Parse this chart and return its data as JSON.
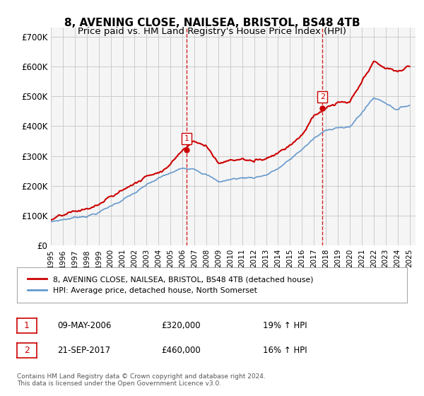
{
  "title": "8, AVENING CLOSE, NAILSEA, BRISTOL, BS48 4TB",
  "subtitle": "Price paid vs. HM Land Registry's House Price Index (HPI)",
  "title_fontsize": 11,
  "subtitle_fontsize": 9.5,
  "ylabel_ticks": [
    "£0",
    "£100K",
    "£200K",
    "£300K",
    "£400K",
    "£500K",
    "£600K",
    "£700K"
  ],
  "ytick_vals": [
    0,
    100000,
    200000,
    300000,
    400000,
    500000,
    600000,
    700000
  ],
  "ylim": [
    0,
    730000
  ],
  "xlim_start": 1995.0,
  "xlim_end": 2025.5,
  "sale1_x": 2006.36,
  "sale1_y": 320000,
  "sale1_label": "1",
  "sale2_x": 2017.72,
  "sale2_y": 460000,
  "sale2_label": "2",
  "legend_line1": "8, AVENING CLOSE, NAILSEA, BRISTOL, BS48 4TB (detached house)",
  "legend_line2": "HPI: Average price, detached house, North Somerset",
  "table_row1": [
    "1",
    "09-MAY-2006",
    "£320,000",
    "19% ↑ HPI"
  ],
  "table_row2": [
    "2",
    "21-SEP-2017",
    "£460,000",
    "16% ↑ HPI"
  ],
  "footer": "Contains HM Land Registry data © Crown copyright and database right 2024.\nThis data is licensed under the Open Government Licence v3.0.",
  "hpi_color": "#6699cc",
  "price_color": "#cc0000",
  "vline_color": "#cc0000",
  "grid_color": "#cccccc",
  "bg_color": "#ffffff",
  "plot_bg": "#f5f5f5",
  "xtick_years": [
    1995,
    1996,
    1997,
    1998,
    1999,
    2000,
    2001,
    2002,
    2003,
    2004,
    2005,
    2006,
    2007,
    2008,
    2009,
    2010,
    2011,
    2012,
    2013,
    2014,
    2015,
    2016,
    2017,
    2018,
    2019,
    2020,
    2021,
    2022,
    2023,
    2024,
    2025
  ],
  "hpi_years": [
    1995,
    1996,
    1997,
    1998,
    1999,
    2000,
    2001,
    2002,
    2003,
    2004,
    2005,
    2006,
    2007,
    2008,
    2009,
    2010,
    2011,
    2012,
    2013,
    2014,
    2015,
    2016,
    2017,
    2018,
    2019,
    2020,
    2021,
    2022,
    2023,
    2024,
    2025
  ],
  "hpi_vals": [
    80000,
    88000,
    95000,
    103000,
    115000,
    135000,
    158000,
    178000,
    200000,
    220000,
    235000,
    248000,
    255000,
    240000,
    212000,
    220000,
    225000,
    228000,
    238000,
    258000,
    285000,
    320000,
    355000,
    378000,
    395000,
    390000,
    440000,
    490000,
    475000,
    455000,
    470000
  ],
  "price_years": [
    1995,
    1996,
    1997,
    1998,
    1999,
    2000,
    2001,
    2002,
    2003,
    2004,
    2005,
    2006,
    2007,
    2008,
    2009,
    2010,
    2011,
    2012,
    2013,
    2014,
    2015,
    2016,
    2017,
    2018,
    2019,
    2020,
    2021,
    2022,
    2023,
    2024,
    2025
  ],
  "price_vals": [
    85000,
    93000,
    100000,
    108000,
    122000,
    145000,
    168000,
    192000,
    215000,
    238000,
    268000,
    320000,
    358000,
    340000,
    285000,
    295000,
    300000,
    290000,
    305000,
    330000,
    360000,
    400000,
    460000,
    485000,
    500000,
    495000,
    555000,
    615000,
    595000,
    580000,
    600000
  ]
}
